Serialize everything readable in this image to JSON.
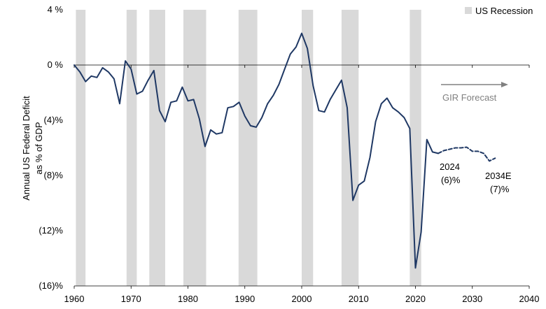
{
  "chart_data": {
    "type": "line",
    "ylabel_line1": "Annual US Federal Deficit",
    "ylabel_line2": "as % of GDP",
    "x_ticks": [
      1960,
      1970,
      1980,
      1990,
      2000,
      2010,
      2020,
      2030,
      2040
    ],
    "y_ticks": [
      {
        "value": 4,
        "label": "4 %"
      },
      {
        "value": 0,
        "label": "0 %"
      },
      {
        "value": -4,
        "label": "(4)%"
      },
      {
        "value": -8,
        "label": "(8)%"
      },
      {
        "value": -12,
        "label": "(12)%"
      },
      {
        "value": -16,
        "label": "(16)%"
      }
    ],
    "xlim": [
      1960,
      2040
    ],
    "ylim": [
      -16,
      4
    ],
    "legend": {
      "label": "US Recession",
      "placement": "top-right",
      "color": "#d9d9d9"
    },
    "recessions": [
      [
        1960.3,
        1962.0
      ],
      [
        1969.2,
        1971.0
      ],
      [
        1973.2,
        1976.0
      ],
      [
        1979.2,
        1983.2
      ],
      [
        1988.9,
        1992.2
      ],
      [
        2000.0,
        2002.0
      ],
      [
        2007.0,
        2010.0
      ],
      [
        2019.0,
        2021.0
      ]
    ],
    "series": [
      {
        "style": "solid",
        "color": "#1f3864",
        "x": [
          1960,
          1961,
          1962,
          1963,
          1964,
          1965,
          1966,
          1967,
          1968,
          1969,
          1970,
          1971,
          1972,
          1973,
          1974,
          1975,
          1976,
          1977,
          1978,
          1979,
          1980,
          1981,
          1982,
          1983,
          1984,
          1985,
          1986,
          1987,
          1988,
          1989,
          1990,
          1991,
          1992,
          1993,
          1994,
          1995,
          1996,
          1997,
          1998,
          1999,
          2000,
          2001,
          2002,
          2003,
          2004,
          2005,
          2006,
          2007,
          2008,
          2009,
          2010,
          2011,
          2012,
          2013,
          2014,
          2015,
          2016,
          2017,
          2018,
          2019,
          2020,
          2021,
          2022,
          2023,
          2024
        ],
        "y": [
          0.0,
          -0.5,
          -1.2,
          -0.8,
          -0.9,
          -0.2,
          -0.5,
          -1.0,
          -2.8,
          0.3,
          -0.3,
          -2.1,
          -1.9,
          -1.1,
          -0.4,
          -3.3,
          -4.1,
          -2.7,
          -2.6,
          -1.6,
          -2.6,
          -2.5,
          -3.9,
          -5.9,
          -4.7,
          -5.0,
          -4.9,
          -3.1,
          -3.0,
          -2.7,
          -3.7,
          -4.4,
          -4.5,
          -3.8,
          -2.8,
          -2.2,
          -1.4,
          -0.3,
          0.8,
          1.3,
          2.3,
          1.2,
          -1.5,
          -3.3,
          -3.4,
          -2.5,
          -1.8,
          -1.1,
          -3.1,
          -9.8,
          -8.7,
          -8.4,
          -6.7,
          -4.1,
          -2.8,
          -2.4,
          -3.1,
          -3.4,
          -3.8,
          -4.6,
          -14.7,
          -12.1,
          -5.4,
          -6.3,
          -6.4
        ]
      },
      {
        "style": "dashed",
        "color": "#1f3864",
        "x": [
          2024,
          2025,
          2026,
          2027,
          2028,
          2029,
          2030,
          2031,
          2032,
          2033,
          2034
        ],
        "y": [
          -6.4,
          -6.2,
          -6.1,
          -6.0,
          -6.0,
          -5.95,
          -6.25,
          -6.25,
          -6.4,
          -6.95,
          -6.75
        ]
      }
    ],
    "annotations": [
      {
        "line1": "2024",
        "line2": "(6)%"
      },
      {
        "line1": "2034E",
        "line2": "(7)%"
      }
    ],
    "forecast_label": "GIR Forecast"
  }
}
